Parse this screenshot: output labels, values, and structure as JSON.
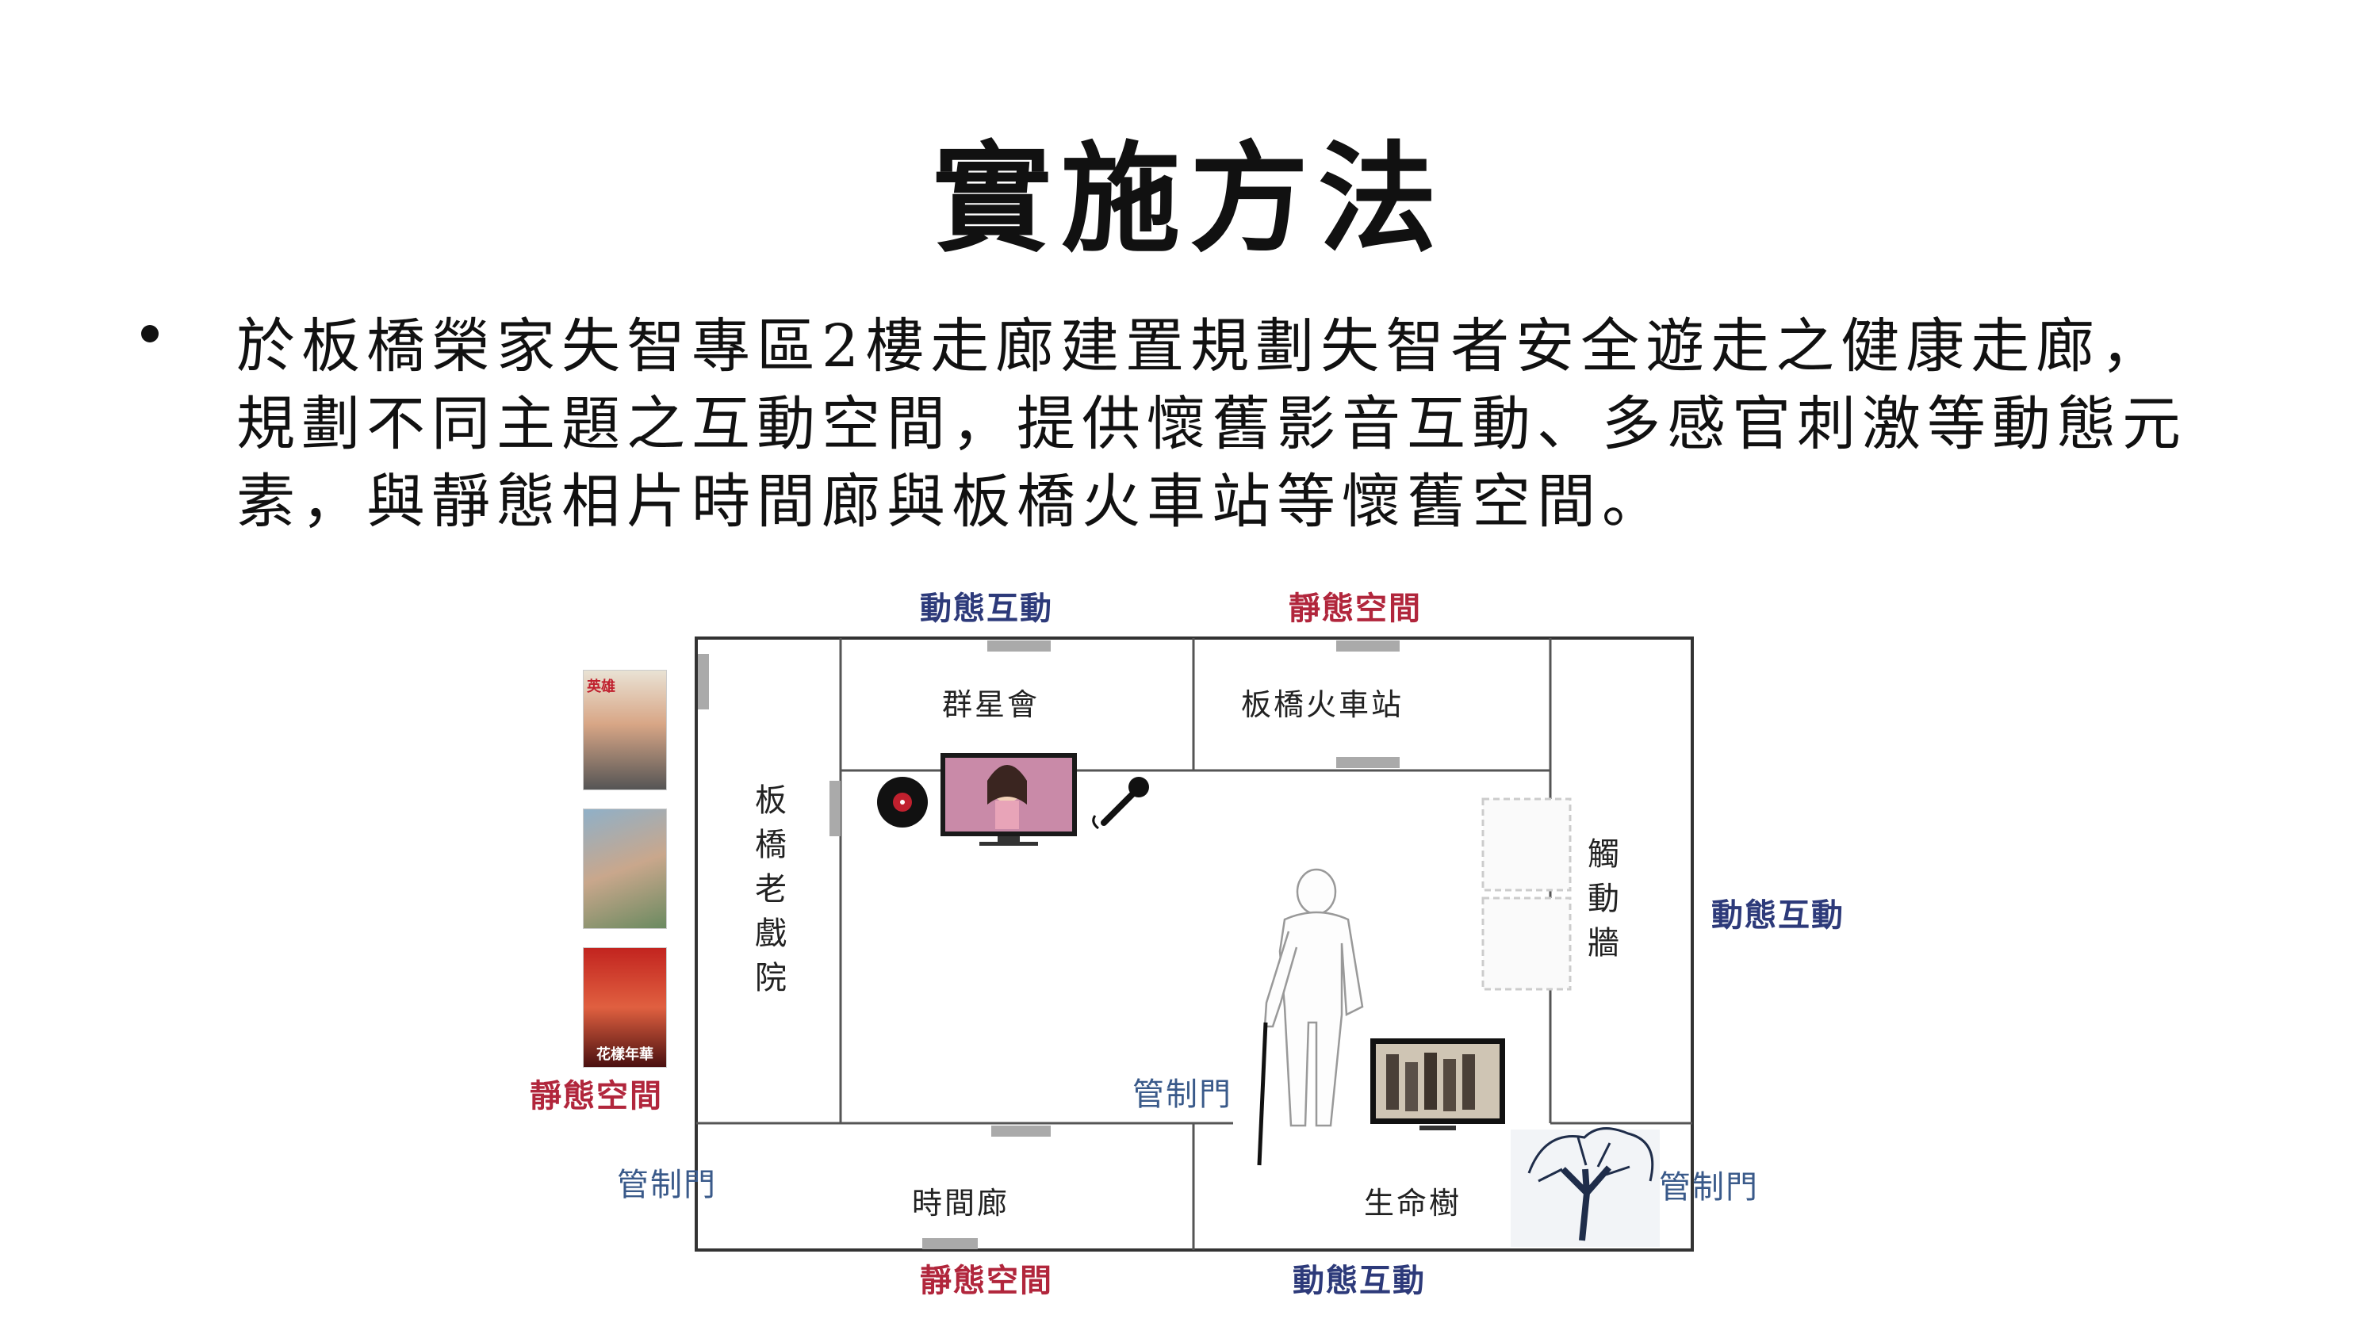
{
  "slide": {
    "title": "實施方法",
    "bullet_lines": [
      "於板橋榮家失智專區2樓走廊建置規劃失智者安全遊走之健康走廊，",
      "規劃不同主題之互動空間，提供懷舊影音互動、多感官刺激等動態元",
      "素，與靜態相片時間廊與板橋火車站等懷舊空間。"
    ]
  },
  "floorplan": {
    "rooms": {
      "star_club": "群星會",
      "station": "板橋火車站",
      "theater": "板橋老戲院",
      "touch_wall": "觸動牆",
      "time_corridor": "時間廊",
      "life_tree": "生命樹"
    },
    "tags": {
      "top_left": "動態互動",
      "top_right": "靜態空間",
      "right": "動態互動",
      "left": "靜態空間",
      "bottom_left": "靜態空間",
      "bottom_right": "動態互動"
    },
    "doors": {
      "center": "管制門",
      "left": "管制門",
      "right": "管制門"
    },
    "posters": [
      {
        "caption": "英雄"
      },
      {
        "caption": ""
      },
      {
        "caption": "花樣年華"
      }
    ],
    "colors": {
      "dynamic": "#2d3a7a",
      "static": "#b1263c",
      "door": "#3a5a8a",
      "wall": "#333333"
    }
  }
}
